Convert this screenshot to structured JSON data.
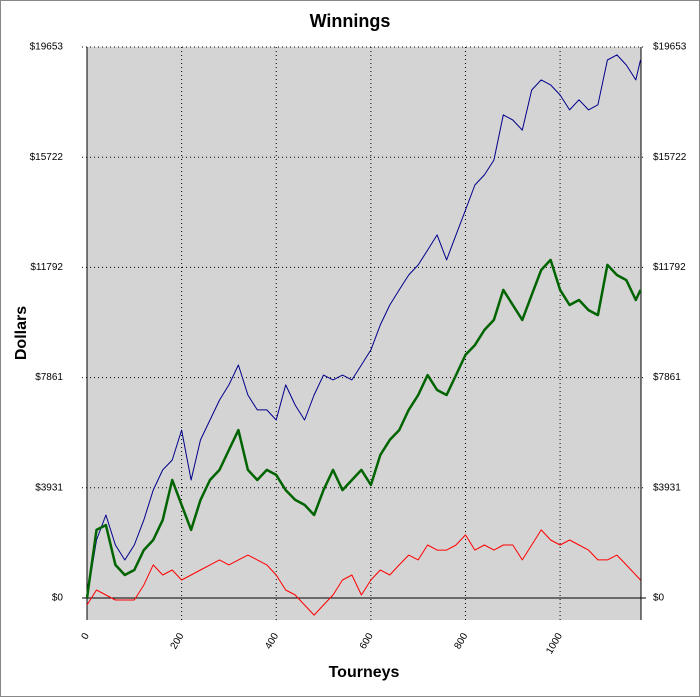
{
  "chart_data": {
    "type": "line",
    "title": "Winnings",
    "x_label": "Tourneys",
    "y_label": "Dollars",
    "x": [
      0,
      20,
      40,
      60,
      80,
      100,
      120,
      140,
      160,
      180,
      200,
      220,
      240,
      260,
      280,
      300,
      320,
      340,
      360,
      380,
      400,
      420,
      440,
      460,
      480,
      500,
      520,
      540,
      560,
      580,
      600,
      620,
      640,
      660,
      680,
      700,
      720,
      740,
      760,
      780,
      800,
      820,
      840,
      860,
      880,
      900,
      920,
      940,
      960,
      980,
      1000,
      1020,
      1040,
      1060,
      1080,
      1100,
      1120,
      1140,
      1160,
      1170
    ],
    "series": [
      {
        "color": "#00008b",
        "values": [
          0,
          2070,
          2960,
          1890,
          1355,
          1890,
          2780,
          3850,
          4570,
          4920,
          5990,
          4210,
          5640,
          6350,
          7060,
          7600,
          8310,
          7240,
          6710,
          6710,
          6350,
          7600,
          6880,
          6350,
          7240,
          7950,
          7780,
          7950,
          7780,
          8310,
          8850,
          9740,
          10450,
          10990,
          11520,
          11880,
          12410,
          12950,
          12060,
          12950,
          13840,
          14730,
          15090,
          15620,
          17230,
          17050,
          16690,
          18120,
          18480,
          18300,
          17940,
          17410,
          17770,
          17410,
          17590,
          19190,
          19370,
          19010,
          18480,
          19190
        ]
      },
      {
        "color": "#006400",
        "values": [
          0,
          2430,
          2600,
          1180,
          820,
          1000,
          1710,
          2070,
          2780,
          4210,
          3320,
          2430,
          3500,
          4210,
          4570,
          5280,
          5990,
          4570,
          4210,
          4570,
          4390,
          3850,
          3500,
          3320,
          2960,
          3850,
          4570,
          3850,
          4210,
          4570,
          4030,
          5100,
          5640,
          5990,
          6710,
          7240,
          7950,
          7420,
          7240,
          7950,
          8670,
          9020,
          9560,
          9920,
          10990,
          10450,
          9920,
          10810,
          11700,
          12060,
          10990,
          10450,
          10630,
          10270,
          10090,
          11880,
          11520,
          11340,
          10630,
          10990
        ]
      },
      {
        "color": "#ff0000",
        "values": [
          -250,
          285,
          107,
          -70,
          -70,
          -70,
          460,
          1180,
          820,
          1000,
          640,
          820,
          1000,
          1180,
          1360,
          1180,
          1360,
          1530,
          1360,
          1180,
          820,
          285,
          107,
          -250,
          -610,
          -250,
          107,
          640,
          820,
          107,
          640,
          1000,
          820,
          1180,
          1530,
          1360,
          1890,
          1710,
          1710,
          1890,
          2250,
          1710,
          1890,
          1710,
          1890,
          1890,
          1360,
          1890,
          2430,
          2070,
          1890,
          2070,
          1890,
          1710,
          1360,
          1360,
          1530,
          1180,
          820,
          640
        ]
      }
    ],
    "xlim": [
      0,
      1171
    ],
    "xticks": [
      0,
      200,
      400,
      600,
      800,
      1000
    ],
    "ylim": [
      -785,
      19653
    ],
    "yticks": [
      {
        "value": 0,
        "label": "$0"
      },
      {
        "value": 3931,
        "label": "$3931"
      },
      {
        "value": 7861,
        "label": "$7861"
      },
      {
        "value": 11792,
        "label": "$11792"
      },
      {
        "value": 15722,
        "label": "$15722"
      },
      {
        "value": 19653,
        "label": "$19653"
      }
    ],
    "grid": true,
    "plot_background": "#d4d4d4"
  }
}
